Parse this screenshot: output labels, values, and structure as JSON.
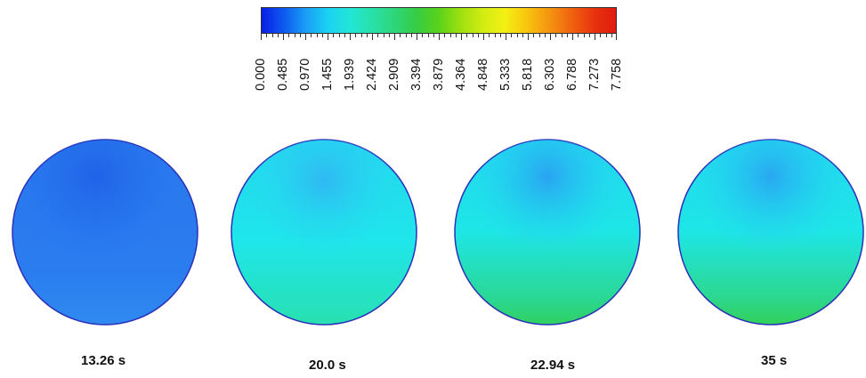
{
  "colorbar": {
    "tick_labels": [
      "0.000",
      "0.485",
      "0.970",
      "1.455",
      "1.939",
      "2.424",
      "2.909",
      "3.394",
      "3.879",
      "4.364",
      "4.848",
      "5.333",
      "5.818",
      "6.303",
      "6.788",
      "7.273",
      "7.758"
    ],
    "colors": [
      "#0a1ee6",
      "#0d5af0",
      "#1a9ef6",
      "#1ad2f2",
      "#22e6d6",
      "#28e0a8",
      "#2ed67a",
      "#36cc44",
      "#5ad21a",
      "#9ee010",
      "#d2ec12",
      "#f4f014",
      "#f8c40e",
      "#f49410",
      "#f0620e",
      "#e8340e",
      "#e01a10"
    ]
  },
  "snapshots": [
    {
      "time_label": "13.26 s"
    },
    {
      "time_label": "20.0 s"
    },
    {
      "time_label": "22.94 s"
    },
    {
      "time_label": "35 s"
    }
  ]
}
